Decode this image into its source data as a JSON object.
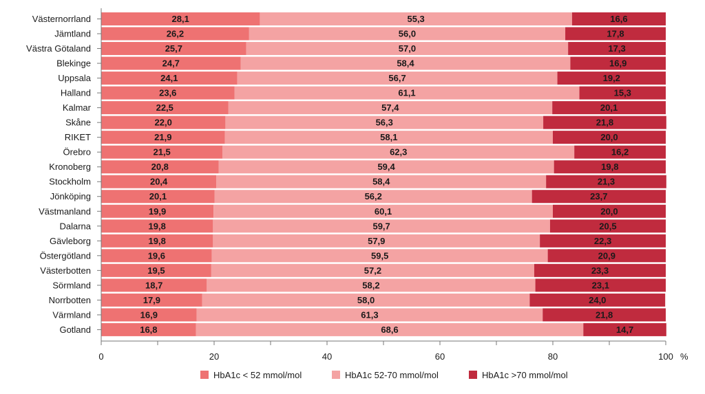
{
  "chart_data": {
    "type": "bar",
    "orientation": "horizontal",
    "stacked": true,
    "categories": [
      "Västernorrland",
      "Jämtland",
      "Västra Götaland",
      "Blekinge",
      "Uppsala",
      "Halland",
      "Kalmar",
      "Skåne",
      "RIKET",
      "Örebro",
      "Kronoberg",
      "Stockholm",
      "Jönköping",
      "Västmanland",
      "Dalarna",
      "Gävleborg",
      "Östergötland",
      "Västerbotten",
      "Sörmland",
      "Norrbotten",
      "Värmland",
      "Gotland"
    ],
    "series": [
      {
        "name": "HbA1c < 52 mmol/mol",
        "color": "#ee7272",
        "values": [
          28.1,
          26.2,
          25.7,
          24.7,
          24.1,
          23.6,
          22.5,
          22.0,
          21.9,
          21.5,
          20.8,
          20.4,
          20.1,
          19.9,
          19.8,
          19.8,
          19.6,
          19.5,
          18.7,
          17.9,
          16.9,
          16.8
        ],
        "labels": [
          "28,1",
          "26,2",
          "25,7",
          "24,7",
          "24,1",
          "23,6",
          "22,5",
          "22,0",
          "21,9",
          "21,5",
          "20,8",
          "20,4",
          "20,1",
          "19,9",
          "19,8",
          "19,8",
          "19,6",
          "19,5",
          "18,7",
          "17,9",
          "16,9",
          "16,8"
        ]
      },
      {
        "name": "HbA1c 52-70 mmol/mol",
        "color": "#f4a3a3",
        "values": [
          55.3,
          56.0,
          57.0,
          58.4,
          56.7,
          61.1,
          57.4,
          56.3,
          58.1,
          62.3,
          59.4,
          58.4,
          56.2,
          60.1,
          59.7,
          57.9,
          59.5,
          57.2,
          58.2,
          58.0,
          61.3,
          68.6
        ],
        "labels": [
          "55,3",
          "56,0",
          "57,0",
          "58,4",
          "56,7",
          "61,1",
          "57,4",
          "56,3",
          "58,1",
          "62,3",
          "59,4",
          "58,4",
          "56,2",
          "60,1",
          "59,7",
          "57,9",
          "59,5",
          "57,2",
          "58,2",
          "58,0",
          "61,3",
          "68,6"
        ]
      },
      {
        "name": "HbA1c >70 mmol/mol",
        "color": "#c02b3e",
        "values": [
          16.6,
          17.8,
          17.3,
          16.9,
          19.2,
          15.3,
          20.1,
          21.8,
          20.0,
          16.2,
          19.8,
          21.3,
          23.7,
          20.0,
          20.5,
          22.3,
          20.9,
          23.3,
          23.1,
          24.0,
          21.8,
          14.7
        ],
        "labels": [
          "16,6",
          "17,8",
          "17,3",
          "16,9",
          "19,2",
          "15,3",
          "20,1",
          "21,8",
          "20,0",
          "16,2",
          "19,8",
          "21,3",
          "23,7",
          "20,0",
          "20,5",
          "22,3",
          "20,9",
          "23,3",
          "23,1",
          "24,0",
          "21,8",
          "14,7"
        ]
      }
    ],
    "xlim": [
      0,
      100
    ],
    "xticks": [
      "0",
      "20",
      "40",
      "60",
      "80",
      "100"
    ],
    "x_unit": "%",
    "legend_position": "bottom",
    "grid": false
  }
}
